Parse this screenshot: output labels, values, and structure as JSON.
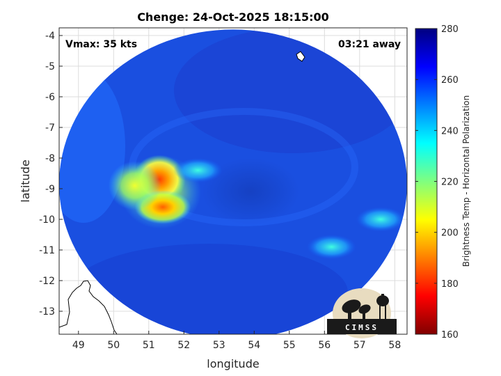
{
  "chart_data": {
    "type": "heatmap",
    "title": "Chenge: 24-Oct-2025 18:15:00",
    "xlabel": "longitude",
    "ylabel": "latitude",
    "xlim": [
      48.45,
      58.35
    ],
    "ylim": [
      -13.75,
      -3.75
    ],
    "xticks": [
      49,
      50,
      51,
      52,
      53,
      54,
      55,
      56,
      57,
      58
    ],
    "yticks": [
      -4,
      -5,
      -6,
      -7,
      -8,
      -9,
      -10,
      -11,
      -12,
      -13
    ],
    "grid": true,
    "annotations": {
      "vmax": "Vmax: 35 kts",
      "time_away": "03:21 away"
    },
    "colorbar": {
      "label": "Brightness Temp - Horizontal Polarization",
      "range": [
        160,
        280
      ],
      "ticks": [
        160,
        180,
        200,
        220,
        240,
        260,
        280
      ],
      "colormap": "jet"
    },
    "swath": {
      "center_lon": 53.4,
      "center_lat": -8.85,
      "background_temp": 262,
      "storm_center": [
        53.6,
        -9.0
      ],
      "convective_features": [
        {
          "lon": 51.3,
          "lat": -8.7,
          "min_temp": 180
        },
        {
          "lon": 51.4,
          "lat": -9.6,
          "min_temp": 190
        },
        {
          "lon": 50.6,
          "lat": -8.9,
          "min_temp": 215
        },
        {
          "lon": 52.4,
          "lat": -8.4,
          "min_temp": 230
        },
        {
          "lon": 56.2,
          "lat": -10.9,
          "min_temp": 245
        },
        {
          "lon": 57.6,
          "lat": -10.0,
          "min_temp": 250
        }
      ]
    },
    "logo": "CIMSS"
  },
  "colors": {
    "background": "#ffffff",
    "axis": "#262626",
    "land": "#ffffff",
    "coast": "#000000",
    "logo_fill": "#1a1a1a",
    "logo_badge": "#e8dcc0"
  }
}
